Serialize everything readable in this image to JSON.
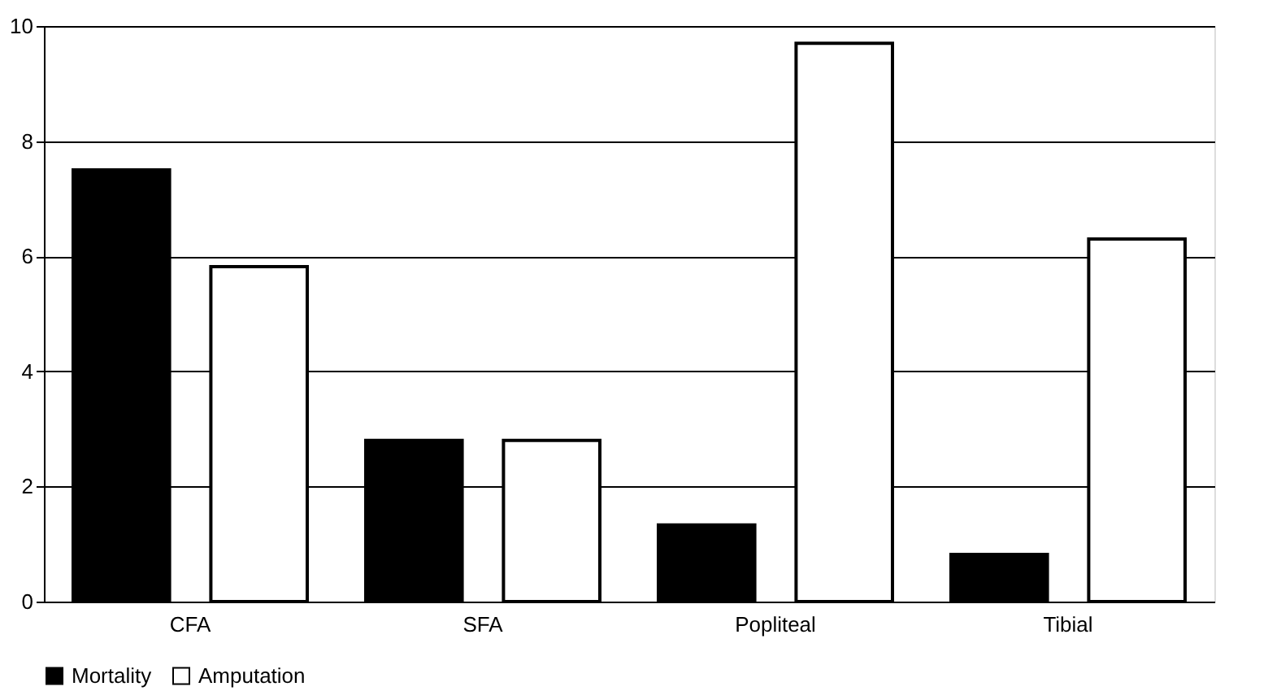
{
  "chart_data": {
    "type": "bar",
    "categories": [
      "CFA",
      "SFA",
      "Popliteal",
      "Tibial"
    ],
    "series": [
      {
        "name": "Mortality",
        "color": "#000000",
        "values": [
          7.5,
          2.8,
          1.33,
          0.82
        ]
      },
      {
        "name": "Amputation",
        "color": "#ffffff",
        "values": [
          5.82,
          2.8,
          9.7,
          6.3
        ]
      }
    ],
    "ylim": [
      0,
      10
    ],
    "yticks": [
      0,
      2,
      4,
      6,
      8,
      10
    ],
    "grid": "y",
    "legend": "bottom"
  }
}
